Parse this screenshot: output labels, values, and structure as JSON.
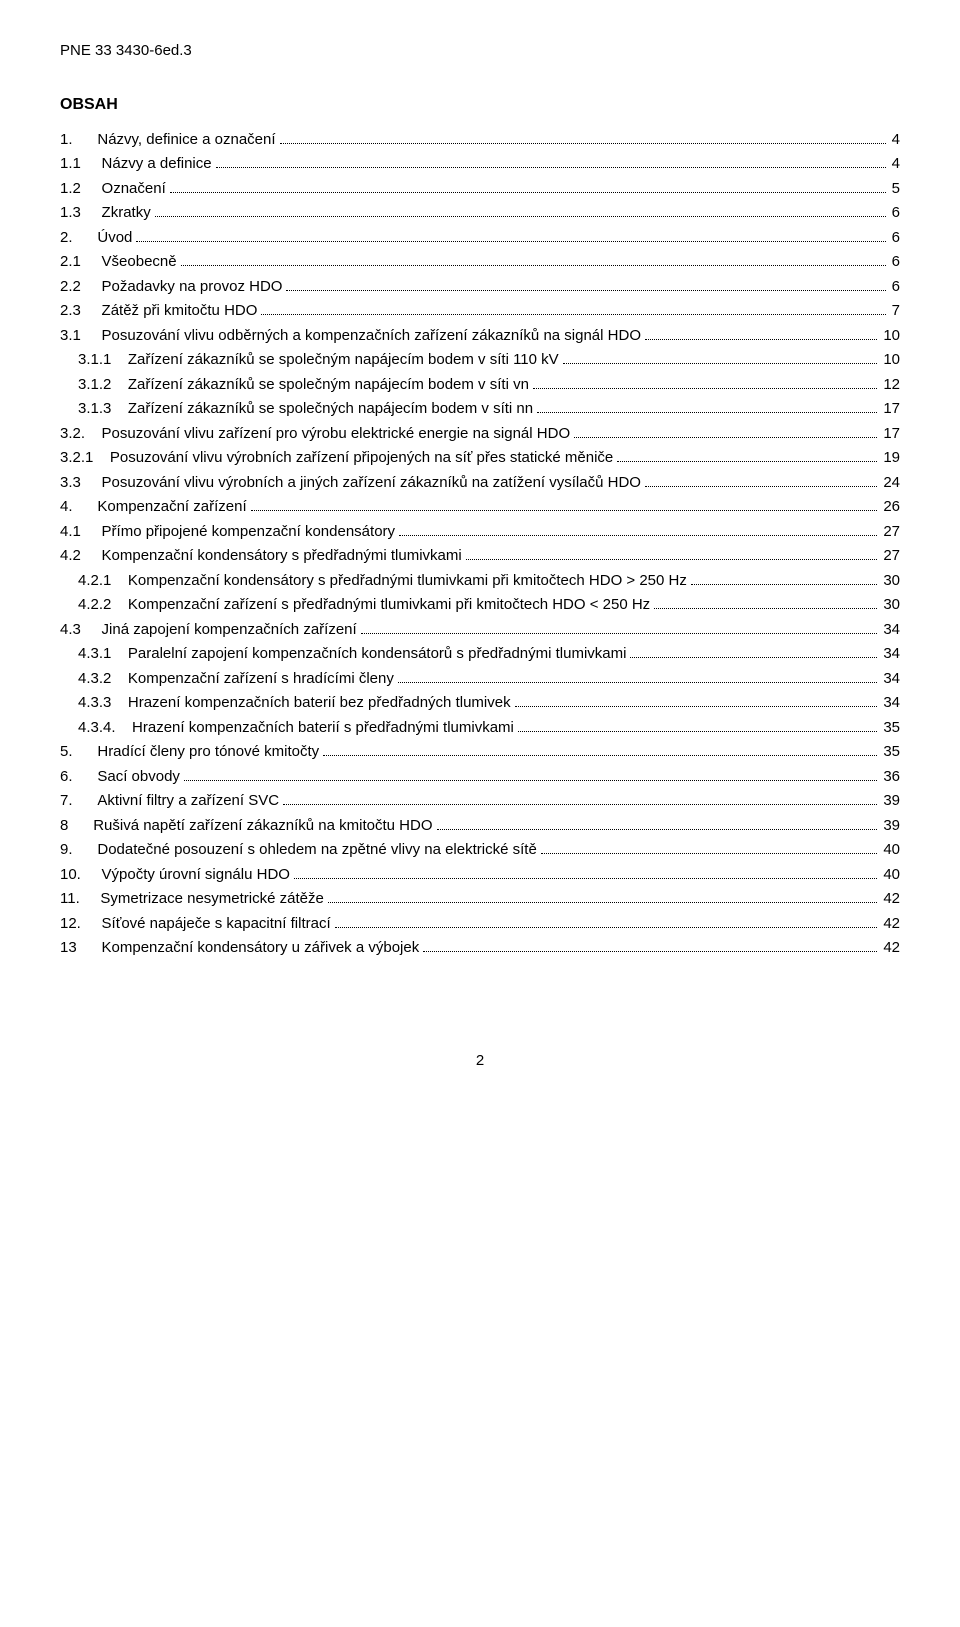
{
  "header": "PNE 33 3430-6ed.3",
  "heading": "OBSAH",
  "footer_page": "2",
  "toc": [
    {
      "num": "1.",
      "title": "Názvy, definice a označení",
      "page": "4",
      "indent": 0
    },
    {
      "num": "1.1",
      "title": "Názvy a definice",
      "page": "4",
      "indent": 0
    },
    {
      "num": "1.2",
      "title": "Označení",
      "page": "5",
      "indent": 0
    },
    {
      "num": "1.3",
      "title": "Zkratky",
      "page": "6",
      "indent": 0
    },
    {
      "num": "2.",
      "title": "Úvod",
      "page": "6",
      "indent": 0
    },
    {
      "num": "2.1",
      "title": "Všeobecně",
      "page": "6",
      "indent": 0
    },
    {
      "num": "2.2",
      "title": "Požadavky na provoz HDO",
      "page": "6",
      "indent": 0
    },
    {
      "num": "2.3",
      "title": "Zátěž při kmitočtu HDO",
      "page": "7",
      "indent": 0
    },
    {
      "num": "3.1",
      "title": "Posuzování vlivu odběrných a kompenzačních zařízení zákazníků na signál HDO",
      "page": "10",
      "indent": 0
    },
    {
      "num": "3.1.1",
      "title": "Zařízení zákazníků se společným napájecím bodem v síti 110 kV",
      "page": "10",
      "indent": 1
    },
    {
      "num": "3.1.2",
      "title": "Zařízení zákazníků se společným napájecím bodem v síti vn",
      "page": "12",
      "indent": 1
    },
    {
      "num": "3.1.3",
      "title": "Zařízení zákazníků se společných napájecím bodem v síti nn",
      "page": "17",
      "indent": 1
    },
    {
      "num": "3.2.",
      "title": "Posuzování vlivu zařízení pro výrobu elektrické energie na signál HDO",
      "page": "17",
      "indent": 0
    },
    {
      "num": "3.2.1",
      "title": "Posuzování vlivu výrobních zařízení  připojených na síť přes statické měniče",
      "page": "19",
      "indent": 0
    },
    {
      "num": "3.3",
      "title": "Posuzování vlivu výrobních a jiných zařízení zákazníků na zatížení vysílačů HDO",
      "page": "24",
      "indent": 0
    },
    {
      "num": "4.",
      "title": "Kompenzační zařízení",
      "page": "26",
      "indent": 0
    },
    {
      "num": "4.1",
      "title": "Přímo připojené kompenzační kondensátory",
      "page": "27",
      "indent": 0
    },
    {
      "num": "4.2",
      "title": "Kompenzační kondensátory s předřadnými tlumivkami",
      "page": "27",
      "indent": 0
    },
    {
      "num": "4.2.1",
      "title": "Kompenzační kondensátory s předřadnými tlumivkami při kmitočtech HDO > 250 Hz",
      "page": "30",
      "indent": 1
    },
    {
      "num": "4.2.2",
      "title": "Kompenzační zařízení s předřadnými tlumivkami při kmitočtech HDO < 250 Hz",
      "page": "30",
      "indent": 1
    },
    {
      "num": "4.3",
      "title": "Jiná zapojení kompenzačních zařízení",
      "page": "34",
      "indent": 0
    },
    {
      "num": "4.3.1",
      "title": "Paralelní zapojení kompenzačních kondensátorů s předřadnými tlumivkami",
      "page": "34",
      "indent": 1
    },
    {
      "num": "4.3.2",
      "title": "Kompenzační zařízení s hradícími členy",
      "page": "34",
      "indent": 1
    },
    {
      "num": "4.3.3",
      "title": "Hrazení kompenzačních baterií bez předřadných tlumivek",
      "page": "34",
      "indent": 1
    },
    {
      "num": "4.3.4.",
      "title": "Hrazení kompenzačních baterií s předřadnými tlumivkami",
      "page": "35",
      "indent": 1
    },
    {
      "num": "5.",
      "title": "Hradící členy pro tónové kmitočty",
      "page": "35",
      "indent": 0
    },
    {
      "num": "6.",
      "title": "Sací obvody",
      "page": "36",
      "indent": 0
    },
    {
      "num": "7.",
      "title": "Aktivní filtry a zařízení SVC",
      "page": "39",
      "indent": 0
    },
    {
      "num": "8",
      "title": "Rušivá napětí zařízení zákazníků na kmitočtu HDO",
      "page": "39",
      "indent": 0
    },
    {
      "num": "9.",
      "title": "Dodatečné posouzení s ohledem na zpětné vlivy na elektrické sítě",
      "page": "40",
      "indent": 0
    },
    {
      "num": "10.",
      "title": "Výpočty úrovní signálu HDO",
      "page": "40",
      "indent": 0
    },
    {
      "num": "11.",
      "title": "Symetrizace nesymetrické zátěže",
      "page": "42",
      "indent": 0
    },
    {
      "num": "12.",
      "title": "Síťové napáječe s kapacitní filtrací",
      "page": "42",
      "indent": 0
    },
    {
      "num": "13",
      "title": "Kompenzační kondensátory u zářivek a výbojek",
      "page": "42",
      "indent": 0
    }
  ]
}
